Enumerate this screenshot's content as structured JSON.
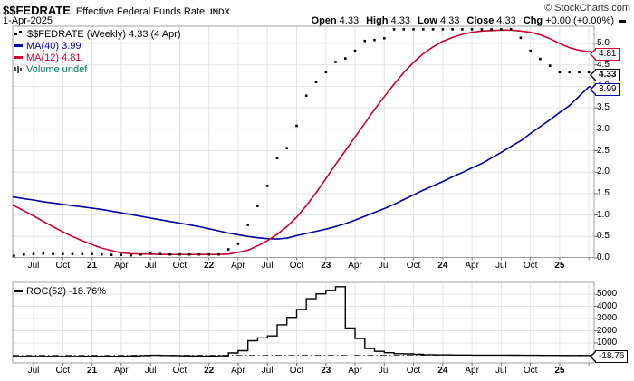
{
  "header": {
    "symbol": "$$FEDRATE",
    "name": "Effective Federal Funds Rate",
    "exchange": "INDX",
    "copyright": "© StockCharts.com",
    "date": "1-Apr-2025",
    "quote": {
      "open_label": "Open",
      "open": "4.33",
      "high_label": "High",
      "high": "4.33",
      "low_label": "Low",
      "low": "4.33",
      "close_label": "Close",
      "close": "4.33",
      "chg_label": "Chg",
      "chg": "+0.00 (+0.00%)"
    }
  },
  "legend": {
    "price": "$$FEDRATE (Weekly) 4.33 (4 Apr)",
    "ma40": "MA(40) 3.99",
    "ma12": "MA(12) 4.81",
    "volume": "Volume undef",
    "roc": "ROC(52) -18.76%"
  },
  "axis_callouts": {
    "ma12": "4.81",
    "price": "4.33",
    "ma40": "3.99",
    "roc": "-18.76"
  },
  "colors": {
    "price": "#000000",
    "ma40": "#000099",
    "ma12": "#cc0033",
    "volume_text": "#007a66",
    "grid": "#e3e3e3",
    "border": "#a0a0a0",
    "tick": "#777777",
    "zero_line": "#555555"
  },
  "chart_data": [
    {
      "type": "line",
      "title": "$$FEDRATE Effective Federal Funds Rate (Weekly) with MA(40) and MA(12)",
      "x_start": "May-2020",
      "x_end": "Apr-2025",
      "x_step": "1 month",
      "ylim": [
        0,
        5.4
      ],
      "grid": true,
      "y_ticks": [
        {
          "label": "5.0",
          "value": 5
        },
        {
          "label": "4.5",
          "value": 4.5
        },
        {
          "label": "4.0",
          "value": 4
        },
        {
          "label": "3.5",
          "value": 3.5
        },
        {
          "label": "3.0",
          "value": 3
        },
        {
          "label": "2.5",
          "value": 2.5
        },
        {
          "label": "2.0",
          "value": 2
        },
        {
          "label": "1.5",
          "value": 1.5
        },
        {
          "label": "1.0",
          "value": 1
        },
        {
          "label": "0.5",
          "value": 0.5
        },
        {
          "label": "0.0",
          "value": 0
        }
      ],
      "x_ticks": [
        {
          "label": "Jul",
          "index": 2,
          "bold": false
        },
        {
          "label": "Oct",
          "index": 5,
          "bold": false
        },
        {
          "label": "21",
          "index": 8,
          "bold": true
        },
        {
          "label": "Apr",
          "index": 11,
          "bold": false
        },
        {
          "label": "Jul",
          "index": 14,
          "bold": false
        },
        {
          "label": "Oct",
          "index": 17,
          "bold": false
        },
        {
          "label": "22",
          "index": 20,
          "bold": true
        },
        {
          "label": "Apr",
          "index": 23,
          "bold": false
        },
        {
          "label": "Jul",
          "index": 26,
          "bold": false
        },
        {
          "label": "Oct",
          "index": 29,
          "bold": false
        },
        {
          "label": "23",
          "index": 32,
          "bold": true
        },
        {
          "label": "Apr",
          "index": 35,
          "bold": false
        },
        {
          "label": "Jul",
          "index": 38,
          "bold": false
        },
        {
          "label": "Oct",
          "index": 41,
          "bold": false
        },
        {
          "label": "24",
          "index": 44,
          "bold": true
        },
        {
          "label": "Apr",
          "index": 47,
          "bold": false
        },
        {
          "label": "Jul",
          "index": 50,
          "bold": false
        },
        {
          "label": "Oct",
          "index": 53,
          "bold": false
        },
        {
          "label": "25",
          "index": 56,
          "bold": true
        }
      ],
      "series": [
        {
          "name": "$$FEDRATE (Weekly)",
          "style": "dots",
          "values": [
            0.05,
            0.08,
            0.09,
            0.1,
            0.09,
            0.09,
            0.09,
            0.09,
            0.09,
            0.08,
            0.07,
            0.07,
            0.06,
            0.08,
            0.1,
            0.09,
            0.08,
            0.08,
            0.08,
            0.08,
            0.08,
            0.08,
            0.2,
            0.33,
            0.77,
            1.21,
            1.68,
            2.33,
            2.56,
            3.08,
            3.78,
            4.1,
            4.33,
            4.57,
            4.65,
            4.83,
            5.06,
            5.08,
            5.12,
            5.33,
            5.33,
            5.33,
            5.33,
            5.33,
            5.33,
            5.33,
            5.33,
            5.33,
            5.33,
            5.33,
            5.33,
            5.33,
            5.13,
            4.83,
            4.64,
            4.48,
            4.33,
            4.33,
            4.33,
            4.33
          ]
        },
        {
          "name": "MA(40)",
          "style": "line",
          "values": [
            1.42,
            1.38,
            1.35,
            1.31,
            1.28,
            1.25,
            1.22,
            1.19,
            1.16,
            1.13,
            1.09,
            1.05,
            1.01,
            0.97,
            0.93,
            0.89,
            0.85,
            0.81,
            0.77,
            0.73,
            0.68,
            0.63,
            0.58,
            0.54,
            0.5,
            0.47,
            0.45,
            0.44,
            0.46,
            0.52,
            0.57,
            0.62,
            0.67,
            0.73,
            0.8,
            0.88,
            0.97,
            1.06,
            1.15,
            1.25,
            1.36,
            1.47,
            1.58,
            1.68,
            1.78,
            1.89,
            1.99,
            2.1,
            2.2,
            2.33,
            2.46,
            2.6,
            2.73,
            2.9,
            3.06,
            3.22,
            3.39,
            3.55,
            3.77,
            3.99
          ]
        },
        {
          "name": "MA(12)",
          "style": "line",
          "values": [
            1.22,
            1.1,
            0.98,
            0.85,
            0.73,
            0.61,
            0.5,
            0.4,
            0.31,
            0.23,
            0.17,
            0.12,
            0.1,
            0.09,
            0.09,
            0.08,
            0.08,
            0.08,
            0.08,
            0.08,
            0.08,
            0.08,
            0.09,
            0.13,
            0.18,
            0.28,
            0.4,
            0.55,
            0.73,
            0.95,
            1.22,
            1.52,
            1.85,
            2.18,
            2.5,
            2.82,
            3.14,
            3.46,
            3.76,
            4.05,
            4.32,
            4.56,
            4.76,
            4.92,
            5.05,
            5.14,
            5.21,
            5.26,
            5.29,
            5.3,
            5.31,
            5.31,
            5.29,
            5.26,
            5.2,
            5.11,
            5.0,
            4.9,
            4.84,
            4.81
          ]
        }
      ]
    },
    {
      "type": "step-line",
      "title": "ROC(52) %",
      "x_ticks_shared": true,
      "ylim": [
        -500,
        5800
      ],
      "grid": true,
      "zero_line": "dash-dot",
      "y_ticks": [
        {
          "label": "5000",
          "value": 5000
        },
        {
          "label": "4000",
          "value": 4000
        },
        {
          "label": "3000",
          "value": 3000
        },
        {
          "label": "2000",
          "value": 2000
        },
        {
          "label": "1000",
          "value": 1000
        }
      ],
      "series": [
        {
          "name": "ROC(52)",
          "style": "step",
          "values": [
            -96,
            -96,
            -95,
            -95,
            -95,
            -94,
            -93,
            -92,
            -91,
            -90,
            -88,
            -85,
            -60,
            -30,
            -10,
            -20,
            -30,
            -50,
            -60,
            -65,
            -68,
            -50,
            186,
            371,
            1183,
            1413,
            1580,
            2489,
            3100,
            3750,
            4625,
            5025,
            5313,
            5613,
            2225,
            1364,
            557,
            320,
            205,
            129,
            108,
            73,
            41,
            30,
            23,
            17,
            15,
            10,
            5,
            5,
            4,
            0,
            -4,
            -9,
            -13,
            -16,
            -19,
            -19,
            -19,
            -18.76
          ]
        }
      ]
    }
  ]
}
